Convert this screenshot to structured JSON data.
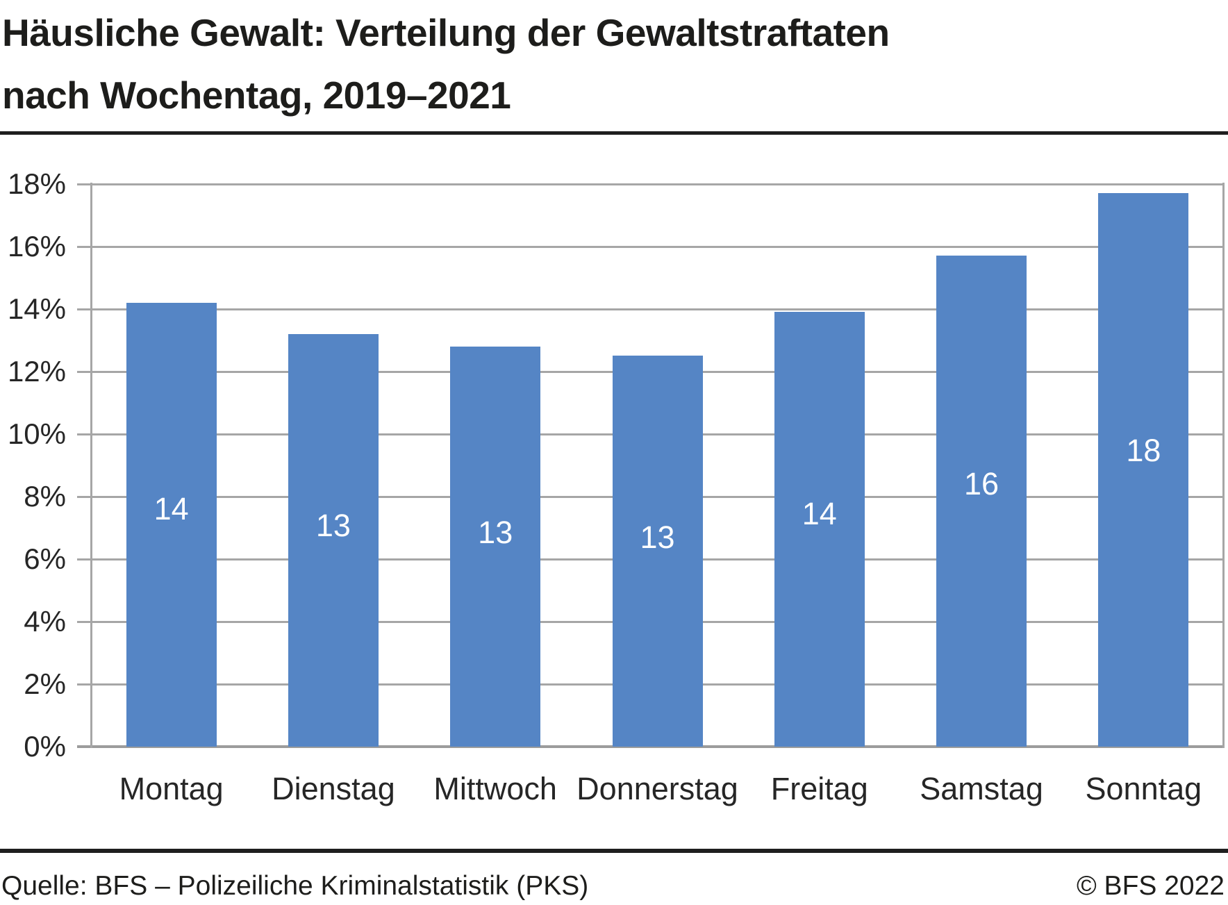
{
  "title": {
    "line1": "Häusliche Gewalt: Verteilung der Gewaltstraftaten",
    "line2": "nach Wochentag, 2019–2021"
  },
  "footer": {
    "source": "Quelle: BFS – Polizeiliche Kriminalstatistik (PKS)",
    "copyright": "© BFS 2022"
  },
  "chart_data": {
    "type": "bar",
    "title": "Häusliche Gewalt: Verteilung der Gewaltstraftaten nach Wochentag, 2019–2021",
    "categories": [
      "Montag",
      "Dienstag",
      "Mittwoch",
      "Donnerstag",
      "Freitag",
      "Samstag",
      "Sonntag"
    ],
    "values": [
      14.2,
      13.2,
      12.8,
      12.5,
      13.9,
      15.7,
      17.7
    ],
    "bar_labels": [
      "14",
      "13",
      "13",
      "13",
      "14",
      "16",
      "18"
    ],
    "unit": "%",
    "xlabel": "",
    "ylabel": "",
    "ylim": [
      0,
      18
    ],
    "yticks": [
      0,
      2,
      4,
      6,
      8,
      10,
      12,
      14,
      16,
      18
    ],
    "ytick_labels": [
      "0%",
      "2%",
      "4%",
      "6%",
      "8%",
      "10%",
      "12%",
      "14%",
      "16%",
      "18%"
    ],
    "grid": true,
    "legend": null,
    "colors": {
      "bar": "#5585c5",
      "bar_label": "#ffffff",
      "gridline": "#a6a6a6",
      "baseline": "#9c9c9c",
      "axis": "#a6a6a6",
      "text": "#262626",
      "rule": "#1f1f1f"
    }
  }
}
